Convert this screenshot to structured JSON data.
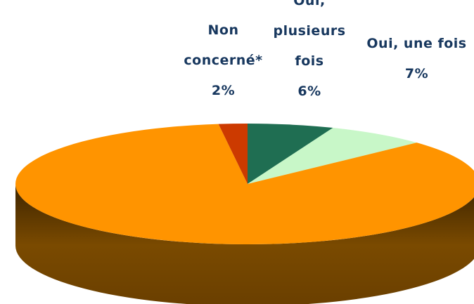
{
  "chart_data": {
    "type": "pie3d",
    "categories": [
      "Oui, plusieurs fois",
      "Oui, une fois",
      null,
      "Non concerné*"
    ],
    "values": [
      6,
      7,
      85,
      2
    ],
    "value_labels": [
      "6%",
      "7%",
      null,
      "2%"
    ],
    "colors": [
      "#1f6e52",
      "#c8f7c8",
      "#ff9400",
      "#cc3a00"
    ]
  }
}
